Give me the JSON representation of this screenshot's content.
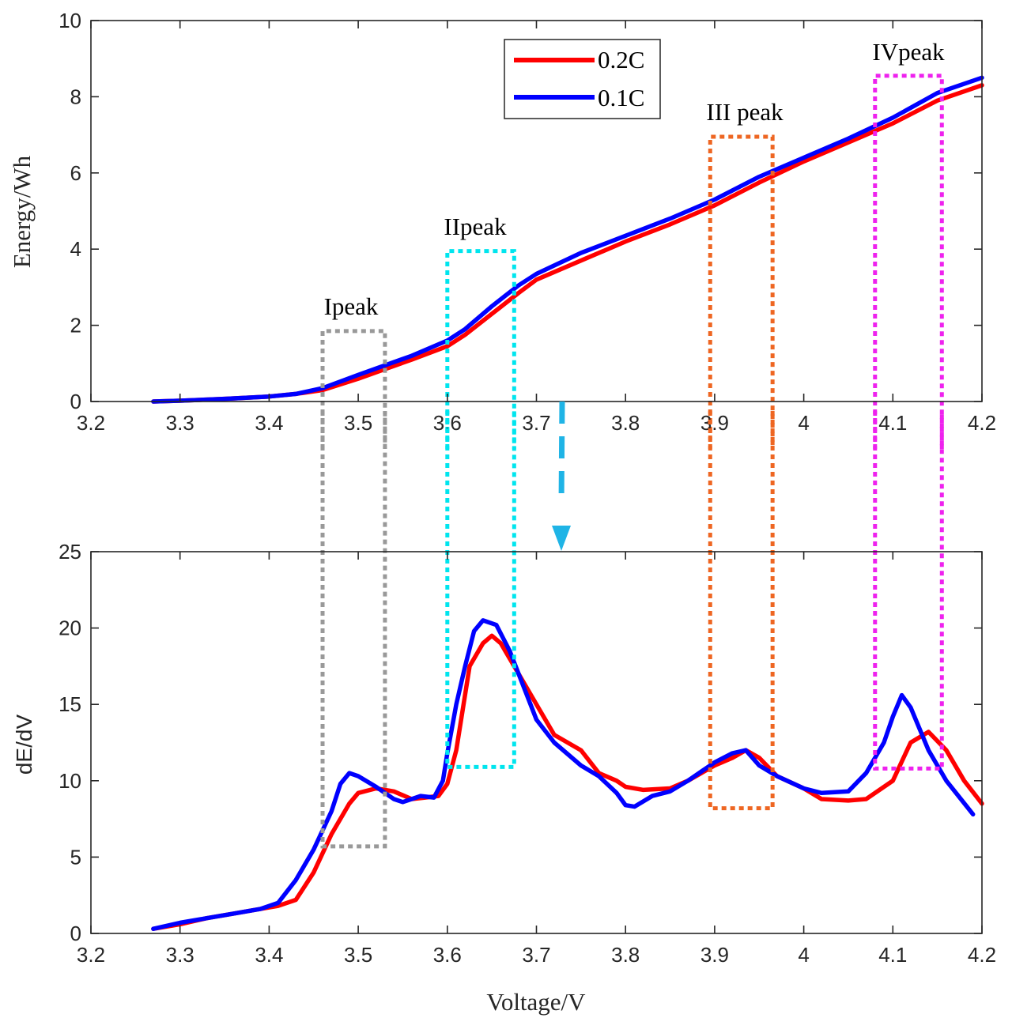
{
  "colors": {
    "series_02c": "#ff0000",
    "series_01c": "#0000ff",
    "box_I": "#999999",
    "box_II": "#00e5ee",
    "box_III": "#ee6622",
    "box_IV": "#ee22ee",
    "arrow": "#1fb4e6",
    "axis": "#262626"
  },
  "chart_data": [
    {
      "type": "line",
      "ylabel": "Energy/Wh",
      "xlabel": "",
      "xlim": [
        3.2,
        4.2
      ],
      "ylim": [
        0,
        10
      ],
      "xticks": [
        3.2,
        3.3,
        3.4,
        3.5,
        3.6,
        3.7,
        3.8,
        3.9,
        4.0,
        4.1,
        4.2
      ],
      "xtick_labels": [
        "3.2",
        "3.3",
        "3.4",
        "3.5",
        "3.6",
        "3.7",
        "3.8",
        "3.9",
        "4",
        "4.1",
        "4.2"
      ],
      "yticks": [
        0,
        2,
        4,
        6,
        8,
        10
      ],
      "ytick_labels": [
        "0",
        "2",
        "4",
        "6",
        "8",
        "10"
      ],
      "legend": {
        "position": "top-center",
        "entries": [
          "0.2C",
          "0.1C"
        ]
      },
      "series": [
        {
          "name": "0.2C",
          "x": [
            3.27,
            3.3,
            3.35,
            3.4,
            3.43,
            3.46,
            3.5,
            3.53,
            3.56,
            3.6,
            3.62,
            3.65,
            3.68,
            3.7,
            3.75,
            3.8,
            3.85,
            3.9,
            3.95,
            4.0,
            4.05,
            4.1,
            4.15,
            4.2
          ],
          "y": [
            0.0,
            0.02,
            0.07,
            0.13,
            0.2,
            0.3,
            0.6,
            0.85,
            1.1,
            1.45,
            1.75,
            2.3,
            2.85,
            3.2,
            3.7,
            4.2,
            4.65,
            5.15,
            5.75,
            6.3,
            6.8,
            7.3,
            7.9,
            8.3
          ]
        },
        {
          "name": "0.1C",
          "x": [
            3.27,
            3.3,
            3.35,
            3.4,
            3.43,
            3.46,
            3.5,
            3.53,
            3.56,
            3.6,
            3.62,
            3.65,
            3.68,
            3.7,
            3.75,
            3.8,
            3.85,
            3.9,
            3.95,
            4.0,
            4.05,
            4.1,
            4.15,
            4.2
          ],
          "y": [
            0.0,
            0.02,
            0.07,
            0.13,
            0.2,
            0.35,
            0.7,
            0.95,
            1.2,
            1.6,
            1.9,
            2.5,
            3.05,
            3.35,
            3.9,
            4.35,
            4.8,
            5.3,
            5.9,
            6.4,
            6.9,
            7.45,
            8.1,
            8.5
          ]
        }
      ],
      "annotations": [
        {
          "text": "Ipeak",
          "box": {
            "x": [
              3.46,
              3.53
            ],
            "y": [
              0,
              1.85
            ]
          },
          "color_key": "box_I"
        },
        {
          "text": "IIpeak",
          "box": {
            "x": [
              3.6,
              3.675
            ],
            "y": [
              0,
              3.95
            ]
          },
          "color_key": "box_II"
        },
        {
          "text": "III peak",
          "box": {
            "x": [
              3.895,
              3.965
            ],
            "y": [
              0,
              6.95
            ]
          },
          "color_key": "box_III"
        },
        {
          "text": "IVpeak",
          "box": {
            "x": [
              4.08,
              4.155
            ],
            "y": [
              0,
              8.55
            ]
          },
          "color_key": "box_IV"
        }
      ]
    },
    {
      "type": "line",
      "ylabel": "dE/dV",
      "xlabel": "Voltage/V",
      "xlim": [
        3.2,
        4.2
      ],
      "ylim": [
        0,
        25
      ],
      "xticks": [
        3.2,
        3.3,
        3.4,
        3.5,
        3.6,
        3.7,
        3.8,
        3.9,
        4.0,
        4.1,
        4.2
      ],
      "xtick_labels": [
        "3.2",
        "3.3",
        "3.4",
        "3.5",
        "3.6",
        "3.7",
        "3.8",
        "3.9",
        "4",
        "4.1",
        "4.2"
      ],
      "yticks": [
        0,
        5,
        10,
        15,
        20,
        25
      ],
      "ytick_labels": [
        "0",
        "5",
        "10",
        "15",
        "20",
        "25"
      ],
      "series": [
        {
          "name": "0.2C",
          "x": [
            3.27,
            3.3,
            3.33,
            3.36,
            3.39,
            3.41,
            3.43,
            3.45,
            3.47,
            3.49,
            3.5,
            3.52,
            3.54,
            3.56,
            3.575,
            3.59,
            3.6,
            3.61,
            3.625,
            3.64,
            3.65,
            3.66,
            3.68,
            3.7,
            3.72,
            3.75,
            3.77,
            3.79,
            3.8,
            3.82,
            3.85,
            3.87,
            3.9,
            3.92,
            3.935,
            3.95,
            3.97,
            4.0,
            4.02,
            4.05,
            4.07,
            4.1,
            4.12,
            4.14,
            4.16,
            4.18,
            4.2
          ],
          "y": [
            0.3,
            0.6,
            1.0,
            1.3,
            1.6,
            1.8,
            2.2,
            4.0,
            6.5,
            8.5,
            9.2,
            9.5,
            9.3,
            8.8,
            8.9,
            9.0,
            9.8,
            12.0,
            17.5,
            19.0,
            19.5,
            19.0,
            17.0,
            15.0,
            13.0,
            12.0,
            10.5,
            10.0,
            9.6,
            9.4,
            9.5,
            10.0,
            11.0,
            11.5,
            12.0,
            11.5,
            10.3,
            9.5,
            8.8,
            8.7,
            8.8,
            10.0,
            12.5,
            13.2,
            12.0,
            10.0,
            8.5
          ]
        },
        {
          "name": "0.1C",
          "x": [
            3.27,
            3.3,
            3.33,
            3.36,
            3.39,
            3.41,
            3.43,
            3.45,
            3.47,
            3.48,
            3.49,
            3.5,
            3.52,
            3.54,
            3.55,
            3.57,
            3.585,
            3.595,
            3.6,
            3.61,
            3.62,
            3.63,
            3.64,
            3.655,
            3.67,
            3.7,
            3.72,
            3.75,
            3.77,
            3.79,
            3.8,
            3.81,
            3.83,
            3.85,
            3.87,
            3.9,
            3.92,
            3.935,
            3.95,
            3.97,
            4.0,
            4.02,
            4.05,
            4.07,
            4.09,
            4.1,
            4.11,
            4.12,
            4.14,
            4.16,
            4.19
          ],
          "y": [
            0.3,
            0.7,
            1.0,
            1.3,
            1.6,
            2.0,
            3.5,
            5.5,
            8.0,
            9.8,
            10.5,
            10.3,
            9.6,
            8.8,
            8.6,
            9.0,
            8.9,
            10.0,
            11.8,
            15.0,
            17.5,
            19.8,
            20.5,
            20.2,
            18.5,
            14.0,
            12.5,
            11.0,
            10.3,
            9.2,
            8.4,
            8.3,
            9.0,
            9.3,
            10.0,
            11.2,
            11.8,
            12.0,
            11.0,
            10.3,
            9.5,
            9.2,
            9.3,
            10.5,
            12.5,
            14.2,
            15.6,
            14.8,
            12.0,
            10.0,
            7.8
          ]
        }
      ],
      "annotations": [
        {
          "box": {
            "x": [
              3.46,
              3.53
            ],
            "y": [
              5.7,
              25
            ]
          },
          "color_key": "box_I"
        },
        {
          "box": {
            "x": [
              3.6,
              3.675
            ],
            "y": [
              10.9,
              25
            ]
          },
          "color_key": "box_II"
        },
        {
          "box": {
            "x": [
              3.895,
              3.965
            ],
            "y": [
              8.2,
              25
            ]
          },
          "color_key": "box_III"
        },
        {
          "box": {
            "x": [
              4.08,
              4.155
            ],
            "y": [
              10.8,
              25
            ]
          },
          "color_key": "box_IV"
        }
      ]
    }
  ]
}
